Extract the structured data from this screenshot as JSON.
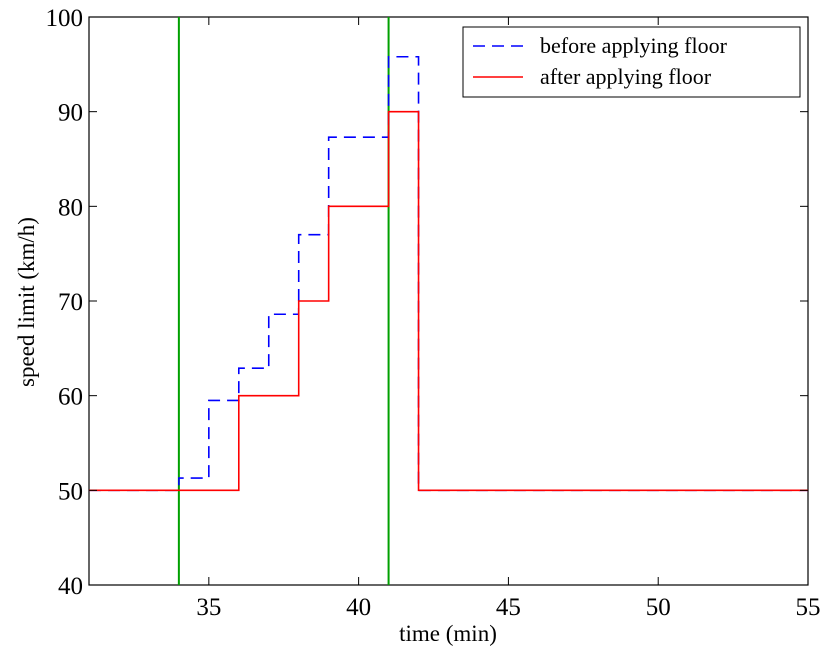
{
  "chart_data": {
    "type": "line",
    "xlabel": "time (min)",
    "ylabel": "speed limit (km/h)",
    "xlim": [
      31,
      55
    ],
    "ylim": [
      40,
      100
    ],
    "xticks": [
      35,
      40,
      45,
      50,
      55
    ],
    "yticks": [
      40,
      50,
      60,
      70,
      80,
      90,
      100
    ],
    "grid": false,
    "legend_position": "top-right",
    "series": [
      {
        "name": "before applying floor",
        "color": "#0000ff",
        "style": "dashed",
        "step": true,
        "x": [
          31,
          34,
          35,
          36,
          37,
          38,
          39,
          41,
          42,
          55
        ],
        "y": [
          50,
          51.3,
          59.5,
          62.9,
          68.6,
          77,
          87.3,
          95.8,
          50,
          50
        ]
      },
      {
        "name": "after applying floor",
        "color": "#ff0000",
        "style": "solid",
        "step": true,
        "x": [
          31,
          36,
          38,
          39,
          41,
          42,
          55
        ],
        "y": [
          50,
          60,
          70,
          80,
          90,
          50,
          50
        ]
      }
    ],
    "vertical_lines": [
      {
        "x": 34,
        "color": "#00a000"
      },
      {
        "x": 41,
        "color": "#00a000"
      }
    ]
  }
}
